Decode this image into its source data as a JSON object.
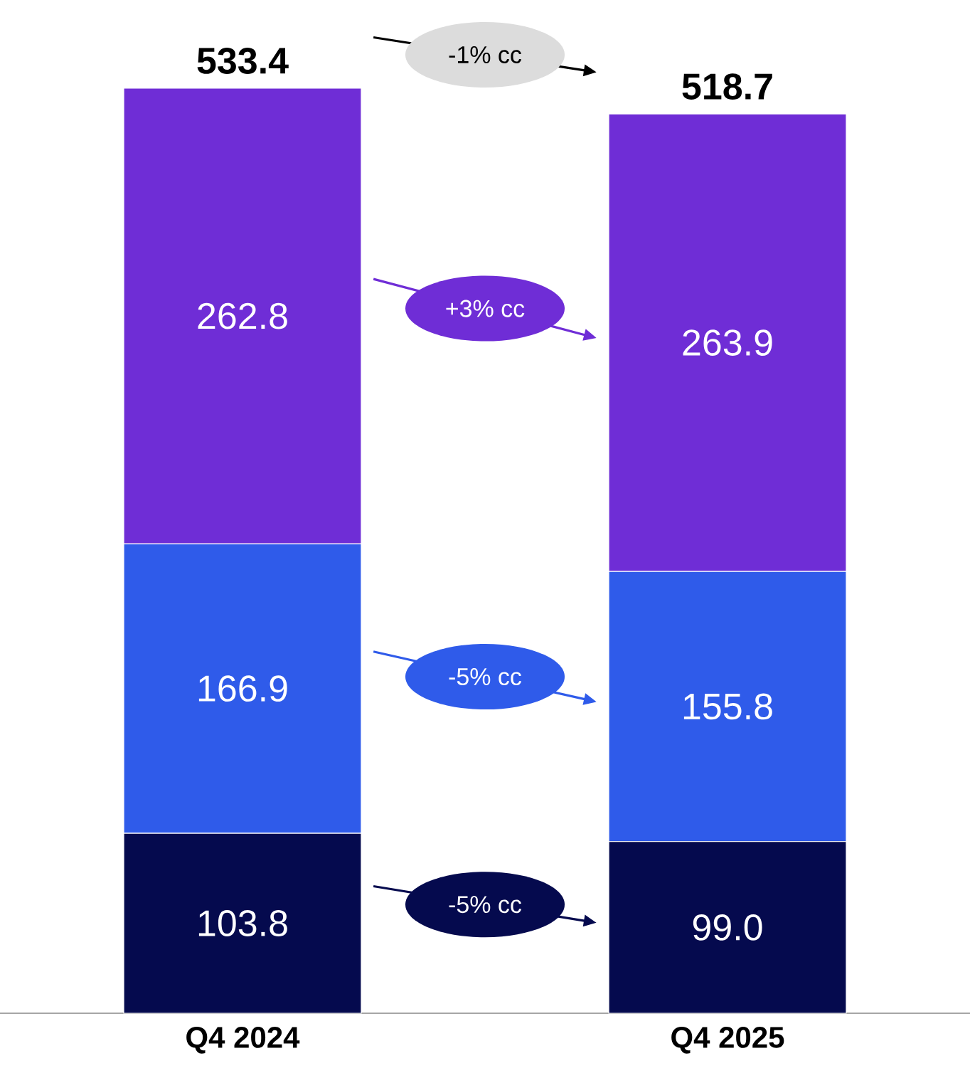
{
  "chart_data": {
    "type": "bar",
    "stacked": true,
    "categories": [
      "Q4 2024",
      "Q4 2025"
    ],
    "series": [
      {
        "color": "#050a4e",
        "values": [
          103.8,
          99.0
        ],
        "value_labels": [
          "103.8",
          "99.0"
        ]
      },
      {
        "color": "#2f5bea",
        "values": [
          166.9,
          155.8
        ],
        "value_labels": [
          "166.9",
          "155.8"
        ]
      },
      {
        "color": "#6f2dd6",
        "values": [
          262.8,
          263.9
        ],
        "value_labels": [
          "262.8",
          "263.9"
        ]
      }
    ],
    "totals": [
      "533.4",
      "518.7"
    ],
    "annotations": [
      "-1% cc",
      "+3% cc",
      "-5% cc",
      "-5% cc"
    ]
  }
}
